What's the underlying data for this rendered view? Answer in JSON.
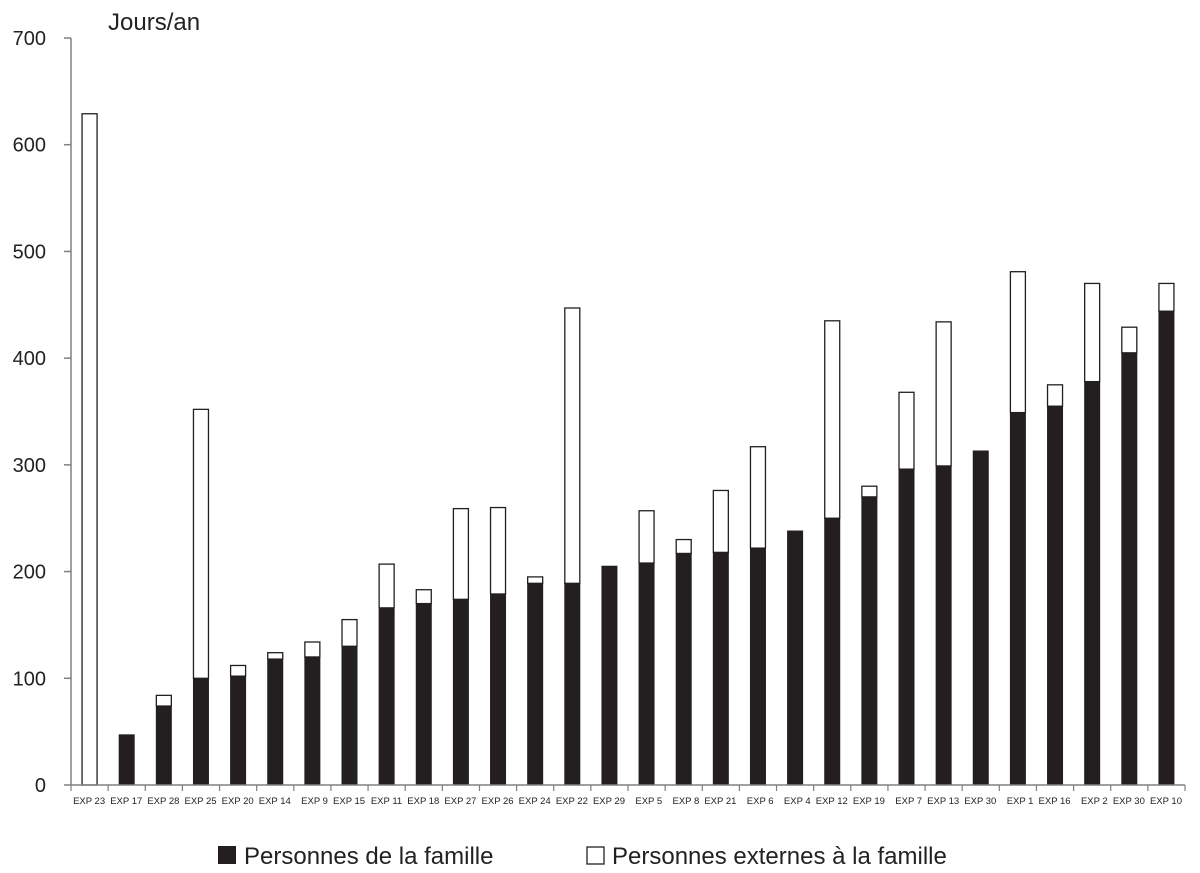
{
  "chart_data": {
    "type": "bar",
    "stacked": true,
    "title": "",
    "xlabel": "",
    "ylabel": "Jours/an",
    "ylim": [
      0,
      700
    ],
    "yticks": [
      0,
      100,
      200,
      300,
      400,
      500,
      600,
      700
    ],
    "grid": false,
    "legend_position": "bottom",
    "categories": [
      "EXP 23",
      "EXP 17",
      "EXP 28",
      "EXP 25",
      "EXP 20",
      "EXP 14",
      "EXP 9",
      "EXP 15",
      "EXP 11",
      "EXP 18",
      "EXP 27",
      "EXP 26",
      "EXP 24",
      "EXP 22",
      "EXP 29",
      "EXP 5",
      "EXP 8",
      "EXP 21",
      "EXP 6",
      "EXP 4",
      "EXP 12",
      "EXP 19",
      "EXP 7",
      "EXP 13",
      "EXP 30",
      "EXP 1",
      "EXP 16",
      "EXP 2",
      "EXP 30",
      "EXP 10"
    ],
    "series": [
      {
        "name": "Personnes de la famille",
        "color": "#231f20",
        "values": [
          0,
          47,
          74,
          100,
          102,
          118,
          120,
          130,
          166,
          170,
          174,
          179,
          189,
          189,
          205,
          208,
          217,
          218,
          222,
          238,
          250,
          270,
          296,
          299,
          313,
          349,
          355,
          378,
          405,
          444
        ]
      },
      {
        "name": "Personnes externes à la famille",
        "color": "#ffffff",
        "values": [
          629,
          0,
          10,
          252,
          10,
          6,
          14,
          25,
          41,
          13,
          85,
          81,
          6,
          258,
          0,
          49,
          13,
          58,
          95,
          0,
          185,
          10,
          72,
          135,
          0,
          132,
          20,
          92,
          24,
          26
        ]
      }
    ]
  },
  "legend": {
    "items": [
      {
        "label": "Personnes de la famille",
        "color": "#231f20"
      },
      {
        "label": "Personnes externes à la famille",
        "color": "#ffffff"
      }
    ]
  }
}
